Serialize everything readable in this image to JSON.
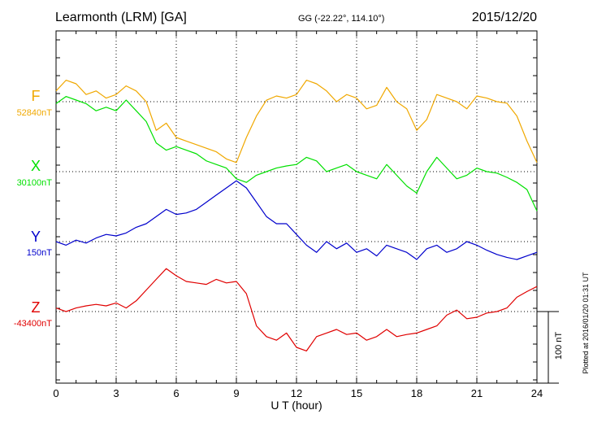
{
  "header": {
    "station": "Learmonth (LRM)  [GA]",
    "coords": "GG (-22.22°, 114.10°)",
    "date": "2015/12/20"
  },
  "footer": {
    "plotted_at": "Plotted at 2016/01/20 01:31  UT"
  },
  "chart_data": {
    "type": "line",
    "xlabel": "U T (hour)",
    "xlim": [
      0,
      24
    ],
    "x_ticks": [
      "0",
      "3",
      "6",
      "9",
      "12",
      "15",
      "18",
      "21",
      "24"
    ],
    "scale_bar_label": "100 nT",
    "scale_bar_nT": 100,
    "series": [
      {
        "name": "F",
        "baseline_label": "52840nT",
        "baseline_nT": 52840,
        "color": "#f0a800",
        "x": [
          0,
          0.5,
          1,
          1.5,
          2,
          2.5,
          3,
          3.5,
          4,
          4.5,
          5,
          5.5,
          6,
          6.5,
          7,
          7.5,
          8,
          8.5,
          9,
          9.5,
          10,
          10.5,
          11,
          11.5,
          12,
          12.5,
          13,
          13.5,
          14,
          14.5,
          15,
          15.5,
          16,
          16.5,
          17,
          17.5,
          18,
          18.5,
          19,
          19.5,
          20,
          20.5,
          21,
          21.5,
          22,
          22.5,
          23,
          23.5,
          24
        ],
        "values": [
          52855,
          52870,
          52865,
          52850,
          52855,
          52845,
          52850,
          52862,
          52855,
          52840,
          52800,
          52810,
          52790,
          52785,
          52780,
          52775,
          52770,
          52760,
          52755,
          52790,
          52820,
          52842,
          52848,
          52845,
          52850,
          52870,
          52865,
          52855,
          52840,
          52850,
          52845,
          52830,
          52835,
          52860,
          52840,
          52830,
          52800,
          52815,
          52850,
          52845,
          52840,
          52830,
          52848,
          52845,
          52840,
          52838,
          52820,
          52785,
          52755
        ]
      },
      {
        "name": "X",
        "baseline_label": "30100nT",
        "baseline_nT": 30100,
        "color": "#00e000",
        "x": [
          0,
          0.5,
          1,
          1.5,
          2,
          2.5,
          3,
          3.5,
          4,
          4.5,
          5,
          5.5,
          6,
          6.5,
          7,
          7.5,
          8,
          8.5,
          9,
          9.5,
          10,
          10.5,
          11,
          11.5,
          12,
          12.5,
          13,
          13.5,
          14,
          14.5,
          15,
          15.5,
          16,
          16.5,
          17,
          17.5,
          18,
          18.5,
          19,
          19.5,
          20,
          20.5,
          21,
          21.5,
          22,
          22.5,
          23,
          23.5,
          24
        ],
        "values": [
          30195,
          30205,
          30200,
          30195,
          30185,
          30190,
          30185,
          30200,
          30185,
          30170,
          30140,
          30130,
          30135,
          30130,
          30125,
          30115,
          30110,
          30105,
          30090,
          30085,
          30095,
          30100,
          30105,
          30108,
          30110,
          30120,
          30115,
          30100,
          30105,
          30110,
          30100,
          30095,
          30090,
          30110,
          30095,
          30080,
          30070,
          30100,
          30120,
          30105,
          30090,
          30095,
          30105,
          30100,
          30098,
          30092,
          30085,
          30075,
          30045
        ]
      },
      {
        "name": "Y",
        "baseline_label": "150nT",
        "baseline_nT": 150,
        "color": "#0000cc",
        "x": [
          0,
          0.5,
          1,
          1.5,
          2,
          2.5,
          3,
          3.5,
          4,
          4.5,
          5,
          5.5,
          6,
          6.5,
          7,
          7.5,
          8,
          8.5,
          9,
          9.5,
          10,
          10.5,
          11,
          11.5,
          12,
          12.5,
          13,
          13.5,
          14,
          14.5,
          15,
          15.5,
          16,
          16.5,
          17,
          17.5,
          18,
          18.5,
          19,
          19.5,
          20,
          20.5,
          21,
          21.5,
          22,
          22.5,
          23,
          23.5,
          24
        ],
        "values": [
          150,
          145,
          152,
          148,
          155,
          160,
          158,
          162,
          170,
          175,
          185,
          195,
          188,
          190,
          195,
          205,
          215,
          225,
          235,
          225,
          205,
          185,
          175,
          175,
          160,
          145,
          135,
          150,
          140,
          148,
          135,
          140,
          130,
          145,
          140,
          135,
          125,
          140,
          145,
          135,
          140,
          150,
          145,
          138,
          132,
          128,
          125,
          130,
          135
        ]
      },
      {
        "name": "Z",
        "baseline_label": "-43400nT",
        "baseline_nT": -43400,
        "color": "#e00000",
        "x": [
          0,
          0.5,
          1,
          1.5,
          2,
          2.5,
          3,
          3.5,
          4,
          4.5,
          5,
          5.5,
          6,
          6.5,
          7,
          7.5,
          8,
          8.5,
          9,
          9.5,
          10,
          10.5,
          11,
          11.5,
          12,
          12.5,
          13,
          13.5,
          14,
          14.5,
          15,
          15.5,
          16,
          16.5,
          17,
          17.5,
          18,
          18.5,
          19,
          19.5,
          20,
          20.5,
          21,
          21.5,
          22,
          22.5,
          23,
          23.5,
          24
        ],
        "values": [
          -43395,
          -43400,
          -43395,
          -43392,
          -43390,
          -43392,
          -43388,
          -43395,
          -43385,
          -43370,
          -43355,
          -43340,
          -43350,
          -43358,
          -43360,
          -43362,
          -43355,
          -43360,
          -43358,
          -43375,
          -43420,
          -43435,
          -43440,
          -43430,
          -43450,
          -43455,
          -43435,
          -43430,
          -43425,
          -43432,
          -43430,
          -43440,
          -43435,
          -43425,
          -43435,
          -43432,
          -43430,
          -43425,
          -43420,
          -43405,
          -43398,
          -43410,
          -43408,
          -43402,
          -43400,
          -43395,
          -43380,
          -43372,
          -43365
        ]
      }
    ]
  }
}
